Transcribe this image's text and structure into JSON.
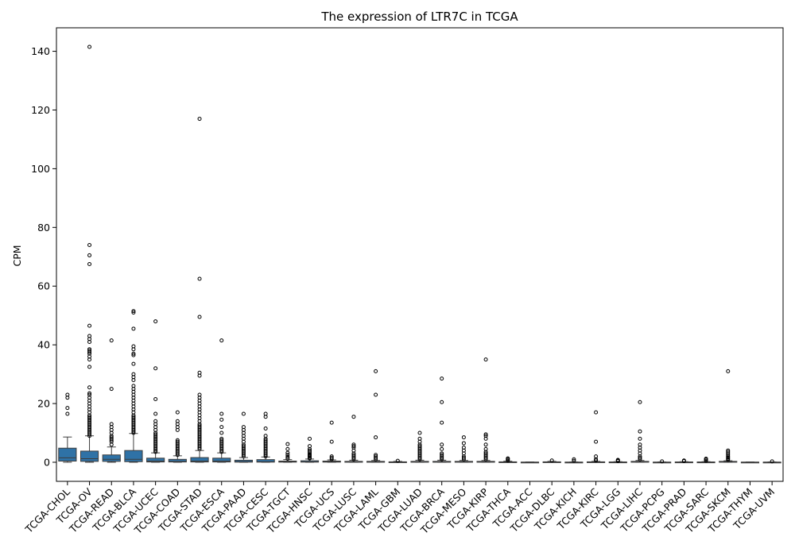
{
  "chart_data": {
    "type": "box",
    "title": "The expression of LTR7C in TCGA",
    "xlabel": "",
    "ylabel": "CPM",
    "ylim": [
      -6.5,
      148
    ],
    "yticks": [
      0,
      20,
      40,
      60,
      80,
      100,
      120,
      140
    ],
    "grid": false,
    "box_color": "#2f72a6",
    "categories": [
      "TCGA-CHOL",
      "TCGA-OV",
      "TCGA-READ",
      "TCGA-BLCA",
      "TCGA-UCEC",
      "TCGA-COAD",
      "TCGA-STAD",
      "TCGA-ESCA",
      "TCGA-PAAD",
      "TCGA-CESC",
      "TCGA-TGCT",
      "TCGA-HNSC",
      "TCGA-UCS",
      "TCGA-LUSC",
      "TCGA-LAML",
      "TCGA-GBM",
      "TCGA-LUAD",
      "TCGA-BRCA",
      "TCGA-MESO",
      "TCGA-KIRP",
      "TCGA-THCA",
      "TCGA-ACC",
      "TCGA-DLBC",
      "TCGA-KICH",
      "TCGA-KIRC",
      "TCGA-LGG",
      "TCGA-LIHC",
      "TCGA-PCPG",
      "TCGA-PRAD",
      "TCGA-SARC",
      "TCGA-SKCM",
      "TCGA-THYM",
      "TCGA-UVM"
    ],
    "boxes": [
      {
        "min": 0,
        "q1": 0.4,
        "median": 1.5,
        "q3": 4.8,
        "max": 8.6,
        "outliers": [
          16.5,
          18.5,
          22,
          23
        ]
      },
      {
        "min": 0,
        "q1": 0.3,
        "median": 1.2,
        "q3": 3.8,
        "max": 9,
        "outliers": [
          9,
          9.5,
          10,
          10.5,
          11,
          11.5,
          12,
          12.5,
          13,
          13.5,
          14,
          14.5,
          15,
          15.5,
          16,
          17,
          18,
          19,
          20,
          21,
          22,
          23,
          23.5,
          25.5,
          32.5,
          35,
          36,
          37,
          37.5,
          38,
          38.5,
          41,
          42,
          43,
          46.5,
          67.5,
          70.5,
          74,
          141.5
        ]
      },
      {
        "min": 0,
        "q1": 0.3,
        "median": 1.0,
        "q3": 2.5,
        "max": 5.2,
        "outliers": [
          6,
          7,
          7.5,
          8,
          8.5,
          9,
          10,
          11,
          12,
          13,
          25,
          41.5
        ]
      },
      {
        "min": 0,
        "q1": 0.2,
        "median": 1.0,
        "q3": 4.0,
        "max": 9.8,
        "outliers": [
          10,
          10.5,
          11,
          11.5,
          12,
          12.5,
          13,
          13.5,
          14,
          14.5,
          15,
          15.5,
          16,
          17,
          18,
          19,
          20,
          21,
          22,
          23,
          24,
          25,
          26,
          28,
          29,
          30,
          33.5,
          36.5,
          37,
          38.5,
          39.5,
          45.5,
          51,
          51.5
        ]
      },
      {
        "min": 0,
        "q1": 0.1,
        "median": 0.4,
        "q3": 1.4,
        "max": 3.2,
        "outliers": [
          3.5,
          4,
          4.5,
          5,
          5.5,
          6,
          6.5,
          7,
          7.5,
          8,
          8.5,
          9,
          9.5,
          10,
          11,
          12,
          13,
          14,
          16.5,
          21.5,
          32,
          48
        ]
      },
      {
        "min": 0,
        "q1": 0.1,
        "median": 0.3,
        "q3": 1.0,
        "max": 2.2,
        "outliers": [
          2.5,
          3,
          3.5,
          4,
          4.5,
          5,
          5.5,
          6,
          6.5,
          7,
          7.5,
          11,
          12,
          13,
          14,
          17
        ]
      },
      {
        "min": 0,
        "q1": 0.1,
        "median": 0.4,
        "q3": 1.6,
        "max": 4.0,
        "outliers": [
          4.5,
          5,
          5.5,
          6,
          6.5,
          7,
          7.5,
          8,
          8.5,
          9,
          9.5,
          10,
          10.5,
          11,
          11.5,
          12,
          12.5,
          13,
          14,
          15,
          16,
          17,
          18,
          19,
          20,
          21,
          22,
          23,
          29.5,
          30.5,
          49.5,
          62.5,
          117
        ]
      },
      {
        "min": 0,
        "q1": 0.1,
        "median": 0.4,
        "q3": 1.4,
        "max": 3.2,
        "outliers": [
          3.5,
          4,
          4.5,
          5,
          5.5,
          6,
          6.5,
          7,
          7.5,
          8,
          10,
          12,
          14.5,
          16.5,
          41.5
        ]
      },
      {
        "min": 0,
        "q1": 0.05,
        "median": 0.2,
        "q3": 0.7,
        "max": 1.6,
        "outliers": [
          2,
          2.5,
          3,
          3.5,
          4,
          4.5,
          5,
          5.5,
          6,
          7,
          8,
          9,
          10,
          11,
          12,
          16.5
        ]
      },
      {
        "min": 0,
        "q1": 0.05,
        "median": 0.2,
        "q3": 0.9,
        "max": 1.8,
        "outliers": [
          2,
          2.5,
          3,
          3.5,
          4,
          4.5,
          5,
          5.5,
          6,
          6.5,
          7,
          7.5,
          8,
          9,
          11.5,
          15.5,
          16.5
        ]
      },
      {
        "min": 0,
        "q1": 0.05,
        "median": 0.15,
        "q3": 0.4,
        "max": 0.9,
        "outliers": [
          1.2,
          1.8,
          2.5,
          3.2,
          4.5,
          6.2
        ]
      },
      {
        "min": 0,
        "q1": 0.05,
        "median": 0.15,
        "q3": 0.5,
        "max": 1.1,
        "outliers": [
          1.3,
          1.6,
          2,
          2.3,
          2.6,
          3,
          3.5,
          4,
          4.5,
          5.5,
          8
        ]
      },
      {
        "min": 0,
        "q1": 0.05,
        "median": 0.15,
        "q3": 0.4,
        "max": 0.8,
        "outliers": [
          1,
          1.5,
          2,
          7,
          13.5
        ]
      },
      {
        "min": 0,
        "q1": 0.02,
        "median": 0.1,
        "q3": 0.3,
        "max": 0.7,
        "outliers": [
          1,
          1.5,
          2,
          2.5,
          3,
          4,
          5,
          5.5,
          6,
          15.5
        ]
      },
      {
        "min": 0,
        "q1": 0.02,
        "median": 0.1,
        "q3": 0.3,
        "max": 0.6,
        "outliers": [
          1,
          1.5,
          2,
          2.5,
          8.5,
          23,
          31
        ]
      },
      {
        "min": 0,
        "q1": 0,
        "median": 0.05,
        "q3": 0.15,
        "max": 0.3,
        "outliers": [
          0.5
        ]
      },
      {
        "min": 0,
        "q1": 0.02,
        "median": 0.1,
        "q3": 0.3,
        "max": 0.7,
        "outliers": [
          1,
          1.5,
          2,
          2.5,
          3,
          3.5,
          4,
          4.5,
          5,
          5.5,
          6,
          7,
          8,
          10
        ]
      },
      {
        "min": 0,
        "q1": 0.02,
        "median": 0.1,
        "q3": 0.3,
        "max": 0.7,
        "outliers": [
          1,
          1.5,
          2,
          2.5,
          3,
          4.5,
          6,
          13.5,
          20.5,
          28.5
        ]
      },
      {
        "min": 0,
        "q1": 0.02,
        "median": 0.1,
        "q3": 0.3,
        "max": 0.6,
        "outliers": [
          1,
          1.5,
          2,
          3,
          4,
          5,
          6.5,
          8.5
        ]
      },
      {
        "min": 0,
        "q1": 0.02,
        "median": 0.1,
        "q3": 0.3,
        "max": 0.6,
        "outliers": [
          1,
          1.5,
          2,
          2.5,
          3,
          3.5,
          4.5,
          6,
          8,
          9,
          9.5,
          35
        ]
      },
      {
        "min": 0,
        "q1": 0,
        "median": 0.05,
        "q3": 0.15,
        "max": 0.35,
        "outliers": [
          0.6,
          1,
          1.3
        ]
      },
      {
        "min": 0,
        "q1": 0,
        "median": 0.02,
        "q3": 0.05,
        "max": 0.1,
        "outliers": []
      },
      {
        "min": 0,
        "q1": 0,
        "median": 0.05,
        "q3": 0.15,
        "max": 0.3,
        "outliers": [
          0.6
        ]
      },
      {
        "min": 0,
        "q1": 0,
        "median": 0.02,
        "q3": 0.05,
        "max": 0.1,
        "outliers": [
          0.5,
          1
        ]
      },
      {
        "min": 0,
        "q1": 0,
        "median": 0.05,
        "q3": 0.15,
        "max": 0.3,
        "outliers": [
          0.6,
          1,
          2,
          7,
          17
        ]
      },
      {
        "min": 0,
        "q1": 0,
        "median": 0.05,
        "q3": 0.1,
        "max": 0.2,
        "outliers": [
          0.4,
          0.6,
          0.8
        ]
      },
      {
        "min": 0,
        "q1": 0.02,
        "median": 0.1,
        "q3": 0.3,
        "max": 0.6,
        "outliers": [
          1,
          1.5,
          2,
          3,
          4,
          5,
          6,
          8,
          10.5,
          20.5
        ]
      },
      {
        "min": 0,
        "q1": 0,
        "median": 0.02,
        "q3": 0.05,
        "max": 0.1,
        "outliers": [
          0.3
        ]
      },
      {
        "min": 0,
        "q1": 0,
        "median": 0.05,
        "q3": 0.1,
        "max": 0.2,
        "outliers": [
          0.4,
          0.6
        ]
      },
      {
        "min": 0,
        "q1": 0,
        "median": 0.05,
        "q3": 0.1,
        "max": 0.2,
        "outliers": [
          0.5,
          0.9,
          1.2
        ]
      },
      {
        "min": 0,
        "q1": 0.02,
        "median": 0.1,
        "q3": 0.3,
        "max": 0.5,
        "outliers": [
          0.8,
          1.2,
          1.6,
          2,
          2.5,
          3,
          3.5,
          4,
          31
        ]
      },
      {
        "min": 0,
        "q1": 0,
        "median": 0.02,
        "q3": 0.05,
        "max": 0.1,
        "outliers": []
      },
      {
        "min": 0,
        "q1": 0,
        "median": 0.02,
        "q3": 0.05,
        "max": 0.1,
        "outliers": [
          0.3
        ]
      }
    ]
  }
}
